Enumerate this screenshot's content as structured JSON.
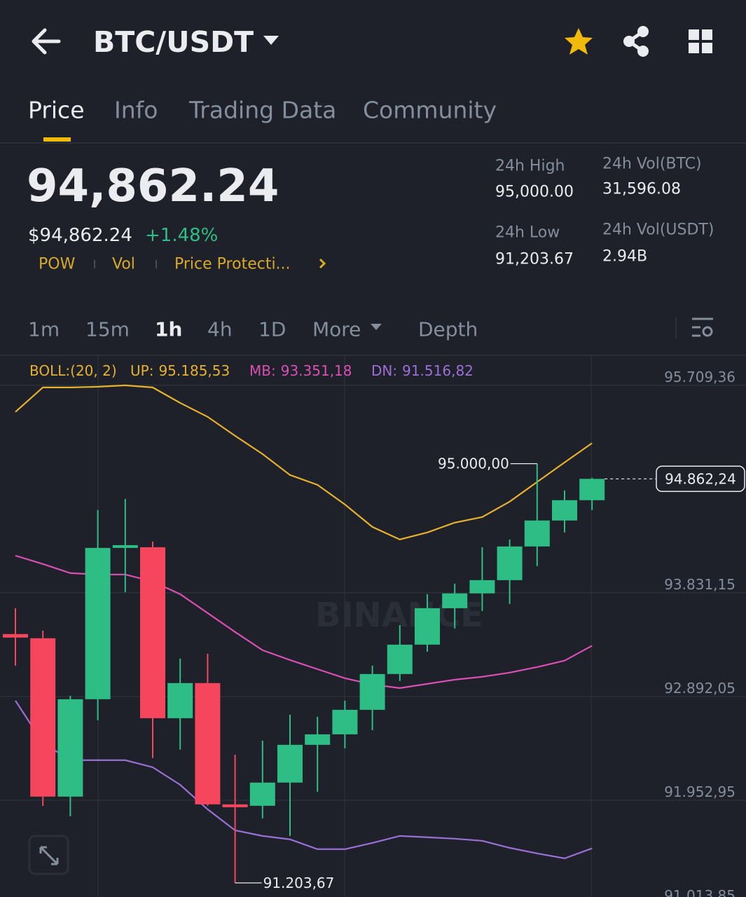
{
  "header": {
    "title": "BTC/USDT"
  },
  "tabs": [
    "Price",
    "Info",
    "Trading Data",
    "Community"
  ],
  "ticker": {
    "price": "94,862.24",
    "price_usd": "$94,862.24",
    "change": "+1.48%",
    "tags": [
      "POW",
      "Vol",
      "Price Protecti..."
    ]
  },
  "stats": [
    {
      "label": "24h High",
      "value": "95,000.00"
    },
    {
      "label": "24h Vol(BTC)",
      "value": "31,596.08"
    },
    {
      "label": "24h Low",
      "value": "91,203.67"
    },
    {
      "label": "24h Vol(USDT)",
      "value": "2.94B"
    }
  ],
  "intervals": [
    "1m",
    "15m",
    "1h",
    "4h",
    "1D",
    "More",
    "Depth"
  ],
  "chart_data": {
    "type": "candlestick",
    "indicator": "BOLL:(20, 2)",
    "watermark": "BINANCE",
    "open": [
      93457,
      93419,
      91985,
      92867,
      94237,
      94243,
      92695,
      93013,
      91915,
      91902,
      92112,
      92454,
      92549,
      92771,
      93095,
      93361,
      93691,
      93825,
      93945,
      94250,
      94485,
      94669
    ],
    "high": [
      93691,
      93488,
      92898,
      94580,
      94681,
      94294,
      93235,
      93279,
      92365,
      92492,
      92727,
      92708,
      92854,
      93171,
      93539,
      93818,
      93913,
      94243,
      94313,
      95000,
      94757,
      94872
    ],
    "low": [
      93171,
      91902,
      91807,
      92676,
      93837,
      92334,
      92410,
      91902,
      91203.67,
      91788,
      91629,
      92029,
      92422,
      92587,
      93032,
      93298,
      93507,
      93666,
      93729,
      94072,
      94377,
      94580
    ],
    "close": [
      93425,
      91985,
      92867,
      94237,
      94262,
      92695,
      93013,
      91915,
      91889,
      92112,
      92454,
      92549,
      92771,
      93095,
      93361,
      93691,
      93825,
      93945,
      94250,
      94485,
      94669,
      94862.24
    ],
    "up_color": "#2ebd85",
    "down_color": "#f6465d",
    "series": [
      {
        "name": "UP:",
        "color": "#e6b12e",
        "value_label": "95.185,53",
        "values": [
          95468,
          95690,
          95690,
          95696,
          95709,
          95690,
          95550,
          95424,
          95252,
          95087,
          94897,
          94808,
          94630,
          94427,
          94313,
          94377,
          94466,
          94516,
          94656,
          94834,
          95011,
          95185.53
        ]
      },
      {
        "name": "MB:",
        "color": "#d94fb4",
        "value_label": "93.351,18",
        "values": [
          94167,
          94091,
          94009,
          93996,
          93996,
          93933,
          93818,
          93647,
          93476,
          93311,
          93222,
          93139,
          93057,
          93000,
          92968,
          93006,
          93044,
          93070,
          93108,
          93158,
          93216,
          93351.18
        ]
      },
      {
        "name": "DN:",
        "color": "#9b6fd6",
        "value_label": "91.516,82",
        "values": [
          92854,
          92473,
          92315,
          92315,
          92315,
          92251,
          92092,
          91870,
          91680,
          91629,
          91598,
          91509,
          91509,
          91566,
          91629,
          91617,
          91604,
          91585,
          91521,
          91471,
          91426,
          91516.82
        ]
      }
    ],
    "ylim": [
      91000,
      96000
    ],
    "yticks": [
      {
        "value": 95709.36,
        "label": "95.709,36"
      },
      {
        "value": 93831.15,
        "label": "93.831,15"
      },
      {
        "value": 92892.05,
        "label": "92.892,05"
      },
      {
        "value": 91952.95,
        "label": "91.952,95"
      },
      {
        "value": 91013.85,
        "label": "91.013,85"
      }
    ],
    "annotations": [
      {
        "value": 95000,
        "label": "95.000,00"
      },
      {
        "value": 91203.67,
        "label": "91.203,67"
      }
    ],
    "last_price": {
      "value": 94862.24,
      "label": "94.862,24"
    },
    "grid": true
  }
}
